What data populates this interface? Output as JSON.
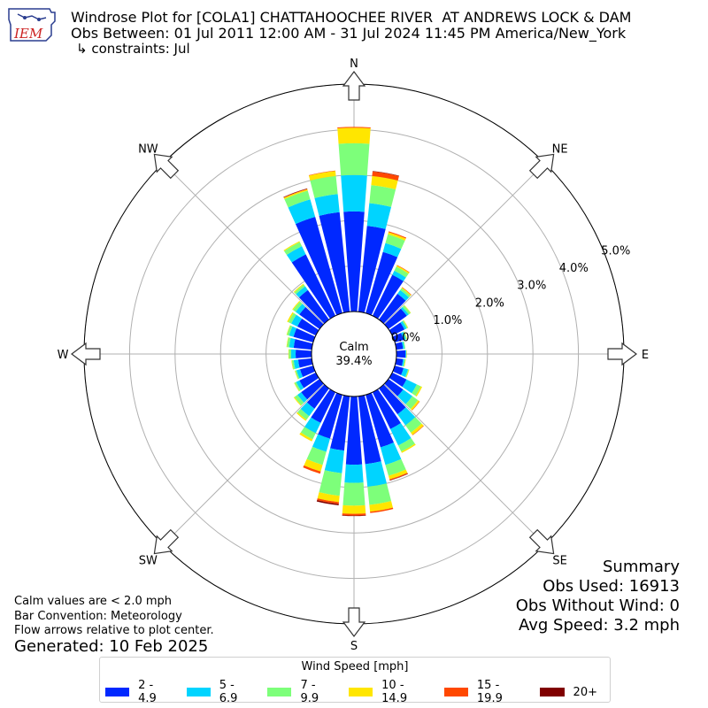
{
  "header": {
    "title": "Windrose Plot for [COLA1] CHATTAHOOCHEE RIVER  AT ANDREWS LOCK & DAM",
    "obs_between": "Obs Between: 01 Jul 2011 12:00 AM - 31 Jul 2024 11:45 PM America/New_York",
    "constraints": "↳ constraints: Jul",
    "logo_text": "IEM"
  },
  "notes": {
    "calm_def": "Calm values are < 2.0 mph",
    "bar_convention": "Bar Convention: Meteorology",
    "flow_arrows": "Flow arrows relative to plot center.",
    "generated": "Generated: 10 Feb 2025"
  },
  "summary": {
    "heading": "Summary",
    "obs_used": "Obs Used: 16913",
    "obs_without_wind": "Obs Without Wind: 0",
    "avg_speed": "Avg Speed: 3.2 mph"
  },
  "legend": {
    "title": "Wind Speed [mph]",
    "items": [
      {
        "label": "2 - 4.9",
        "color": "#0028ff"
      },
      {
        "label": "5 - 6.9",
        "color": "#00d4ff"
      },
      {
        "label": "7 - 9.9",
        "color": "#7dff7a"
      },
      {
        "label": "10 - 14.9",
        "color": "#ffe600"
      },
      {
        "label": "15 - 19.9",
        "color": "#ff4800"
      },
      {
        "label": "20+",
        "color": "#800000"
      }
    ]
  },
  "chart_data": {
    "type": "windrose",
    "calm_label": "Calm",
    "calm_value": "39.4%",
    "radial_ticks": [
      "0.0%",
      "1.0%",
      "2.0%",
      "3.0%",
      "4.0%",
      "5.0%"
    ],
    "rmax": 5.0,
    "directions": [
      "N",
      "NE",
      "E",
      "SE",
      "S",
      "SW",
      "W",
      "NW"
    ],
    "direction_bins": [
      0,
      10,
      20,
      30,
      40,
      50,
      60,
      70,
      80,
      90,
      100,
      110,
      120,
      130,
      140,
      150,
      160,
      170,
      180,
      190,
      200,
      210,
      220,
      230,
      240,
      250,
      260,
      270,
      280,
      290,
      300,
      310,
      320,
      330,
      340,
      350
    ],
    "speed_bins": [
      "2 - 4.9",
      "5 - 6.9",
      "7 - 9.9",
      "10 - 14.9",
      "15 - 19.9",
      "20+"
    ],
    "cumulative": [
      [
        2.2,
        3.0,
        3.7,
        4.04,
        4.06,
        4.06
      ],
      [
        1.9,
        2.4,
        2.8,
        3.0,
        3.1,
        3.11
      ],
      [
        1.4,
        1.6,
        1.8,
        1.85,
        1.87,
        1.87
      ],
      [
        1.0,
        1.1,
        1.2,
        1.23,
        1.24,
        1.24
      ],
      [
        0.7,
        0.8,
        0.85,
        0.87,
        0.88,
        0.88
      ],
      [
        0.5,
        0.55,
        0.6,
        0.61,
        0.61,
        0.61
      ],
      [
        0.3,
        0.35,
        0.38,
        0.39,
        0.39,
        0.39
      ],
      [
        0.2,
        0.25,
        0.27,
        0.28,
        0.28,
        0.28
      ],
      [
        0.15,
        0.18,
        0.2,
        0.2,
        0.2,
        0.2
      ],
      [
        0.2,
        0.22,
        0.22,
        0.23,
        0.23,
        0.23
      ],
      [
        0.15,
        0.18,
        0.2,
        0.21,
        0.21,
        0.21
      ],
      [
        0.2,
        0.3,
        0.32,
        0.33,
        0.33,
        0.33
      ],
      [
        0.35,
        0.6,
        0.7,
        0.73,
        0.73,
        0.73
      ],
      [
        0.4,
        0.65,
        0.8,
        0.84,
        0.85,
        0.85
      ],
      [
        0.7,
        1.0,
        1.2,
        1.26,
        1.27,
        1.27
      ],
      [
        0.9,
        1.3,
        1.45,
        1.48,
        1.48,
        1.48
      ],
      [
        1.2,
        1.6,
        1.85,
        1.93,
        1.95,
        1.96
      ],
      [
        1.5,
        2.0,
        2.4,
        2.55,
        2.58,
        2.58
      ],
      [
        1.5,
        1.9,
        2.4,
        2.58,
        2.62,
        2.63
      ],
      [
        1.2,
        1.7,
        2.2,
        2.34,
        2.38,
        2.41
      ],
      [
        1.0,
        1.3,
        1.6,
        1.75,
        1.8,
        1.8
      ],
      [
        0.75,
        1.0,
        1.15,
        1.2,
        1.2,
        1.2
      ],
      [
        0.55,
        0.75,
        0.85,
        0.88,
        0.88,
        0.88
      ],
      [
        0.5,
        0.6,
        0.68,
        0.7,
        0.7,
        0.7
      ],
      [
        0.4,
        0.48,
        0.52,
        0.53,
        0.53,
        0.53
      ],
      [
        0.3,
        0.38,
        0.41,
        0.42,
        0.42,
        0.42
      ],
      [
        0.3,
        0.4,
        0.44,
        0.45,
        0.45,
        0.45
      ],
      [
        0.35,
        0.45,
        0.5,
        0.51,
        0.51,
        0.51
      ],
      [
        0.4,
        0.5,
        0.55,
        0.56,
        0.56,
        0.56
      ],
      [
        0.45,
        0.55,
        0.6,
        0.61,
        0.61,
        0.61
      ],
      [
        0.45,
        0.6,
        0.67,
        0.7,
        0.7,
        0.7
      ],
      [
        0.55,
        0.65,
        0.72,
        0.74,
        0.74,
        0.74
      ],
      [
        0.8,
        0.9,
        0.95,
        0.97,
        0.97,
        0.97
      ],
      [
        1.5,
        1.7,
        1.8,
        1.82,
        1.82,
        1.82
      ],
      [
        2.2,
        2.6,
        2.8,
        2.83,
        2.84,
        2.85
      ],
      [
        2.2,
        2.6,
        3.0,
        3.11,
        3.12,
        3.12
      ]
    ],
    "legend_placement": "bottom-center"
  }
}
